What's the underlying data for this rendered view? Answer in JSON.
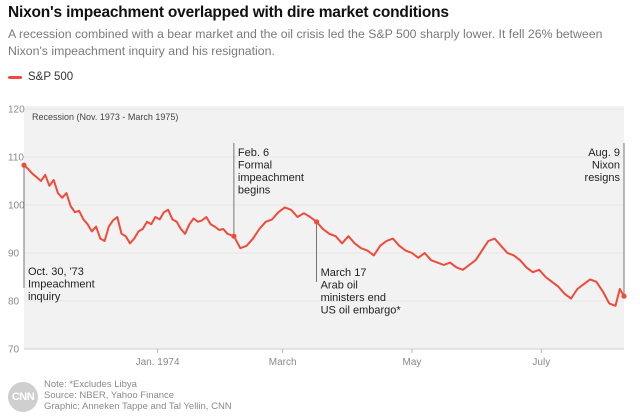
{
  "title": "Nixon's impeachment overlapped with dire market conditions",
  "subtitle": "A recession combined with a bear market and the oil crisis led the S&P 500 sharply lower. It fell 26% between Nixon's impeachment inquiry and his resignation.",
  "legend_label": "S&P 500",
  "recession_label": "Recession (Nov. 1973 - March 1975)",
  "footer": {
    "note": "Note: *Excludes Libya",
    "source": "Source: NBER, Yahoo Finance",
    "credit": "Graphic: Anneken Tappe and Tal Yellin, CNN"
  },
  "logo_text": "CNN",
  "colors": {
    "line": "#f04b3a",
    "recession_band": "#f2f2f2",
    "grid": "#e5e5e5"
  },
  "chart_data": {
    "type": "line",
    "title": "Nixon's impeachment overlapped with dire market conditions",
    "xlabel": "",
    "ylabel": "",
    "ylim": [
      70,
      120
    ],
    "yticks": [
      70,
      80,
      90,
      100,
      110,
      120
    ],
    "xlim": [
      "1973-10-30",
      "1974-08-09"
    ],
    "xticks": [
      {
        "label": "Jan. 1974",
        "date": "1974-01-01"
      },
      {
        "label": "March",
        "date": "1974-03-01"
      },
      {
        "label": "May",
        "date": "1974-05-01"
      },
      {
        "label": "July",
        "date": "1974-07-01"
      }
    ],
    "grid": true,
    "legend": "top-left",
    "series": [
      {
        "name": "S&P 500",
        "color": "#f04b3a",
        "x": [
          "1973-10-30",
          "1973-11-01",
          "1973-11-03",
          "1973-11-05",
          "1973-11-07",
          "1973-11-09",
          "1973-11-11",
          "1973-11-13",
          "1973-11-15",
          "1973-11-17",
          "1973-11-19",
          "1973-11-21",
          "1973-11-23",
          "1973-11-25",
          "1973-11-27",
          "1973-11-29",
          "1973-12-01",
          "1973-12-03",
          "1973-12-05",
          "1973-12-07",
          "1973-12-09",
          "1973-12-11",
          "1973-12-13",
          "1973-12-15",
          "1973-12-17",
          "1973-12-19",
          "1973-12-21",
          "1973-12-23",
          "1973-12-25",
          "1973-12-27",
          "1973-12-29",
          "1973-12-31",
          "1974-01-02",
          "1974-01-04",
          "1974-01-06",
          "1974-01-08",
          "1974-01-10",
          "1974-01-12",
          "1974-01-14",
          "1974-01-16",
          "1974-01-18",
          "1974-01-20",
          "1974-01-22",
          "1974-01-24",
          "1974-01-26",
          "1974-01-28",
          "1974-01-30",
          "1974-02-01",
          "1974-02-03",
          "1974-02-06",
          "1974-02-09",
          "1974-02-12",
          "1974-02-15",
          "1974-02-18",
          "1974-02-21",
          "1974-02-24",
          "1974-02-27",
          "1974-03-02",
          "1974-03-05",
          "1974-03-08",
          "1974-03-11",
          "1974-03-14",
          "1974-03-17",
          "1974-03-20",
          "1974-03-23",
          "1974-03-26",
          "1974-03-29",
          "1974-04-01",
          "1974-04-04",
          "1974-04-07",
          "1974-04-10",
          "1974-04-13",
          "1974-04-16",
          "1974-04-19",
          "1974-04-22",
          "1974-04-25",
          "1974-04-28",
          "1974-05-01",
          "1974-05-04",
          "1974-05-07",
          "1974-05-10",
          "1974-05-13",
          "1974-05-16",
          "1974-05-19",
          "1974-05-22",
          "1974-05-25",
          "1974-05-28",
          "1974-05-31",
          "1974-06-03",
          "1974-06-06",
          "1974-06-09",
          "1974-06-12",
          "1974-06-15",
          "1974-06-18",
          "1974-06-21",
          "1974-06-24",
          "1974-06-27",
          "1974-06-30",
          "1974-07-03",
          "1974-07-06",
          "1974-07-09",
          "1974-07-12",
          "1974-07-15",
          "1974-07-18",
          "1974-07-21",
          "1974-07-24",
          "1974-07-27",
          "1974-07-30",
          "1974-08-02",
          "1974-08-05",
          "1974-08-07",
          "1974-08-09"
        ],
        "values": [
          108.3,
          107.5,
          106.5,
          105.8,
          105.0,
          106.3,
          104.0,
          105.2,
          102.5,
          101.5,
          102.5,
          99.8,
          98.5,
          98.8,
          97.0,
          96.0,
          94.5,
          95.5,
          93.0,
          92.5,
          95.5,
          96.8,
          97.5,
          94.0,
          93.5,
          92.0,
          93.0,
          94.5,
          95.0,
          96.5,
          96.0,
          97.5,
          97.0,
          98.5,
          99.0,
          97.0,
          96.5,
          95.0,
          94.0,
          96.0,
          97.2,
          96.5,
          96.8,
          97.5,
          96.0,
          95.5,
          94.8,
          95.0,
          94.0,
          93.5,
          91.0,
          91.5,
          93.0,
          95.0,
          96.5,
          97.0,
          98.5,
          99.5,
          99.0,
          97.5,
          98.3,
          97.5,
          96.5,
          95.0,
          94.0,
          93.5,
          92.0,
          93.5,
          92.0,
          91.0,
          90.5,
          89.5,
          91.5,
          92.5,
          93.0,
          91.5,
          90.5,
          90.0,
          89.0,
          90.0,
          88.5,
          88.0,
          87.5,
          88.0,
          87.0,
          86.5,
          87.5,
          88.5,
          90.5,
          92.5,
          93.0,
          91.5,
          90.0,
          89.5,
          88.5,
          87.0,
          86.0,
          86.5,
          85.0,
          84.0,
          83.0,
          81.5,
          80.5,
          82.5,
          83.5,
          84.5,
          84.0,
          82.0,
          79.5,
          79.0,
          82.5,
          81.0
        ]
      }
    ],
    "annotations": [
      {
        "date": "1973-10-30",
        "value": 108.3,
        "lines": [
          "Oct. 30, '73",
          "Impeachment",
          "inquiry"
        ]
      },
      {
        "date": "1974-02-06",
        "value": 93.5,
        "lines": [
          "Feb. 6",
          "Formal",
          "impeachment",
          "begins"
        ]
      },
      {
        "date": "1974-03-17",
        "value": 96.5,
        "lines": [
          "March 17",
          "Arab oil",
          "ministers end",
          "US oil embargo*"
        ]
      },
      {
        "date": "1974-08-09",
        "value": 81.0,
        "lines": [
          "Aug. 9",
          "Nixon",
          "resigns"
        ]
      }
    ]
  }
}
